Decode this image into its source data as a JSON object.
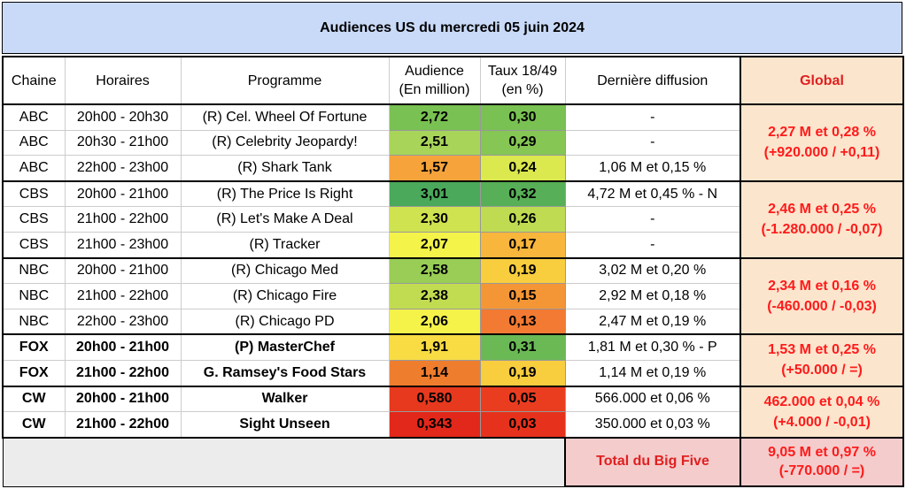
{
  "title": "Audiences US du mercredi 05 juin 2024",
  "headers": {
    "chaine": "Chaine",
    "horaires": "Horaires",
    "programme": "Programme",
    "audience_l1": "Audience",
    "audience_l2": "(En million)",
    "taux_l1": "Taux 18/49",
    "taux_l2": "(en %)",
    "derniere": "Dernière diffusion",
    "global": "Global"
  },
  "rows": [
    {
      "chaine": "ABC",
      "horaires": "20h00 - 20h30",
      "programme": "(R) Cel. Wheel Of Fortune",
      "audience": "2,72",
      "taux": "0,30",
      "derniere": "-",
      "audience_color": "#79c152",
      "taux_color": "#79c152"
    },
    {
      "chaine": "ABC",
      "horaires": "20h30 - 21h00",
      "programme": "(R) Celebrity Jeopardy!",
      "audience": "2,51",
      "taux": "0,29",
      "derniere": "-",
      "audience_color": "#a8d45a",
      "taux_color": "#86c654"
    },
    {
      "chaine": "ABC",
      "horaires": "22h00 - 23h00",
      "programme": "(R) Shark Tank",
      "audience": "1,57",
      "taux": "0,24",
      "derniere": "1,06 M et 0,15 %",
      "audience_color": "#f6a33c",
      "taux_color": "#dbe84e"
    },
    {
      "chaine": "CBS",
      "horaires": "20h00 - 21h00",
      "programme": "(R) The Price Is Right",
      "audience": "3,01",
      "taux": "0,32",
      "derniere": "4,72 M et 0,45 % - N",
      "audience_color": "#4aa95a",
      "taux_color": "#57af57"
    },
    {
      "chaine": "CBS",
      "horaires": "21h00 - 22h00",
      "programme": "(R) Let's Make A Deal",
      "audience": "2,30",
      "taux": "0,26",
      "derniere": "-",
      "audience_color": "#cfe350",
      "taux_color": "#bfdb52"
    },
    {
      "chaine": "CBS",
      "horaires": "21h00 - 23h00",
      "programme": "(R) Tracker",
      "audience": "2,07",
      "taux": "0,17",
      "derniere": "-",
      "audience_color": "#f4f34a",
      "taux_color": "#f8b63c"
    },
    {
      "chaine": "NBC",
      "horaires": "20h00 - 21h00",
      "programme": "(R) Chicago Med",
      "audience": "2,58",
      "taux": "0,19",
      "derniere": "3,02 M et 0,20 %",
      "audience_color": "#99cd56",
      "taux_color": "#f8cd3e"
    },
    {
      "chaine": "NBC",
      "horaires": "21h00 - 22h00",
      "programme": "(R) Chicago Fire",
      "audience": "2,38",
      "taux": "0,15",
      "derniere": "2,92 M et 0,18 %",
      "audience_color": "#c2dc52",
      "taux_color": "#f49636"
    },
    {
      "chaine": "NBC",
      "horaires": "22h00 - 23h00",
      "programme": "(R) Chicago PD",
      "audience": "2,06",
      "taux": "0,13",
      "derniere": "2,47 M et 0,19 %",
      "audience_color": "#f5f34a",
      "taux_color": "#f27a32"
    },
    {
      "chaine": "FOX",
      "horaires": "20h00 - 21h00",
      "programme": "(P) MasterChef",
      "audience": "1,91",
      "taux": "0,31",
      "derniere": "1,81 M et 0,30 % - P",
      "audience_color": "#f9dc44",
      "taux_color": "#6ab955"
    },
    {
      "chaine": "FOX",
      "horaires": "21h00 - 22h00",
      "programme": "G. Ramsey's Food Stars",
      "audience": "1,14",
      "taux": "0,19",
      "derniere": "1,14 M et 0,19 %",
      "audience_color": "#ef7d2e",
      "taux_color": "#f8cd3e"
    },
    {
      "chaine": "CW",
      "horaires": "20h00 - 21h00",
      "programme": "Walker",
      "audience": "0,580",
      "taux": "0,05",
      "derniere": "566.000 et 0,06 %",
      "audience_color": "#e7391e",
      "taux_color": "#ea3d20"
    },
    {
      "chaine": "CW",
      "horaires": "21h00 - 22h00",
      "programme": "Sight Unseen",
      "audience": "0,343",
      "taux": "0,03",
      "derniere": "350.000 et 0,03 %",
      "audience_color": "#e2281a",
      "taux_color": "#e6321c"
    }
  ],
  "global": [
    {
      "line1": "2,27 M et 0,28 %",
      "line2": "(+920.000 / +0,11)"
    },
    {
      "line1": "2,46 M et 0,25 %",
      "line2": "(-1.280.000 / -0,07)"
    },
    {
      "line1": "2,34 M et 0,16 %",
      "line2": "(-460.000 / -0,03)"
    },
    {
      "line1": "1,53 M et 0,25 %",
      "line2": "(+50.000 / =)"
    },
    {
      "line1": "462.000 et 0,04 %",
      "line2": "(+4.000 / -0,01)"
    }
  ],
  "total": {
    "label": "Total du Big Five",
    "line1": "9,05 M et 0,97 %",
    "line2": "(-770.000 / =)"
  }
}
